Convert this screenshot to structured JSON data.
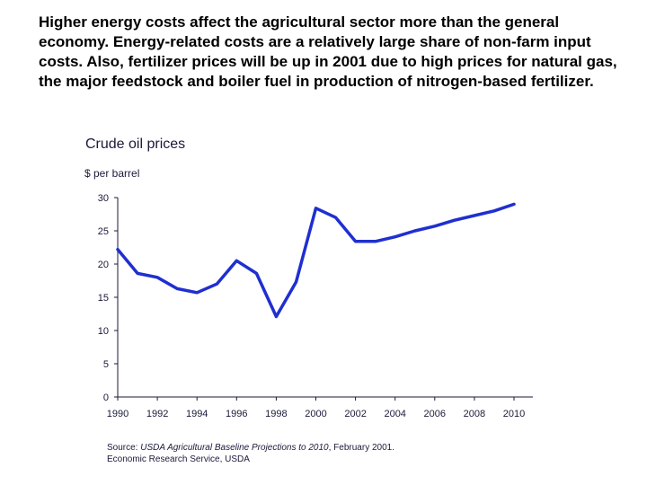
{
  "intro_text": "Higher energy costs affect the agricultural sector more than the general economy. Energy-related costs are a relatively large share of non-farm input costs. Also, fertilizer prices will be up in 2001 due to high prices for natural gas, the major feedstock and boiler fuel in production of nitrogen-based fertilizer.",
  "chart_data": {
    "type": "line",
    "title": "Crude oil prices",
    "ylabel": "$ per barrel",
    "xlabel": "",
    "xlim": [
      1990,
      2010
    ],
    "ylim": [
      0,
      30
    ],
    "x_ticks": [
      "1990",
      "1992",
      "1994",
      "1996",
      "1998",
      "2000",
      "2002",
      "2004",
      "2006",
      "2008",
      "2010"
    ],
    "y_ticks": [
      "0",
      "5",
      "10",
      "15",
      "20",
      "25",
      "30"
    ],
    "series": [
      {
        "name": "Crude oil price",
        "color": "#1f2fd0",
        "x": [
          1990,
          1991,
          1992,
          1993,
          1994,
          1995,
          1996,
          1997,
          1998,
          1999,
          2000,
          2001,
          2002,
          2003,
          2004,
          2005,
          2006,
          2007,
          2008,
          2009,
          2010
        ],
        "values": [
          22.2,
          18.6,
          18.0,
          16.3,
          15.7,
          17.0,
          20.5,
          18.6,
          12.1,
          17.3,
          28.4,
          27.0,
          23.4,
          23.4,
          24.1,
          25.0,
          25.7,
          26.6,
          27.3,
          28.0,
          29.0
        ]
      }
    ],
    "grid": false
  },
  "source": {
    "prefix": "Source: ",
    "publication": "USDA Agricultural Baseline Projections to 2010",
    "suffix": ", February 2001.",
    "line2": "Economic Research Service, USDA"
  }
}
